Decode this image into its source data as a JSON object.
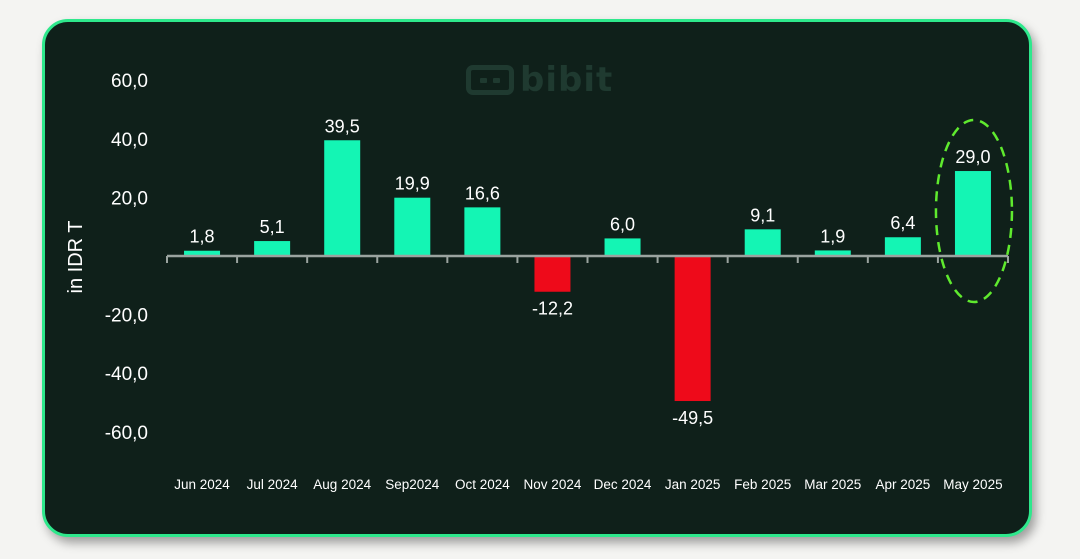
{
  "watermark": {
    "brand": "bibit",
    "icon": "bibit-logo-icon"
  },
  "colors": {
    "positive": "#14f5b4",
    "negative": "#ee0a1a",
    "highlight": "#5fea2e",
    "text": "#ffffff",
    "axis": "#9aa39f"
  },
  "chart_data": {
    "type": "bar",
    "title": "",
    "xlabel": "",
    "ylabel": "in IDR T",
    "ylim": [
      -60,
      60
    ],
    "yticks": [
      "60,0",
      "40,0",
      "20,0",
      "-20,0",
      "-40,0",
      "-60,0"
    ],
    "grid": false,
    "categories": [
      "Jun 2024",
      "Jul 2024",
      "Aug 2024",
      "Sep2024",
      "Oct 2024",
      "Nov 2024",
      "Dec 2024",
      "Jan 2025",
      "Feb 2025",
      "Mar 2025",
      "Apr 2025",
      "May 2025"
    ],
    "values": [
      1.8,
      5.1,
      39.5,
      19.9,
      16.6,
      -12.2,
      6.0,
      -49.5,
      9.1,
      1.9,
      6.4,
      29.0
    ],
    "labels": [
      "1,8",
      "5,1",
      "39,5",
      "19,9",
      "16,6",
      "-12,2",
      "6,0",
      "-49,5",
      "9,1",
      "1,9",
      "6,4",
      "29,0"
    ],
    "highlighted_category": "May 2025"
  }
}
